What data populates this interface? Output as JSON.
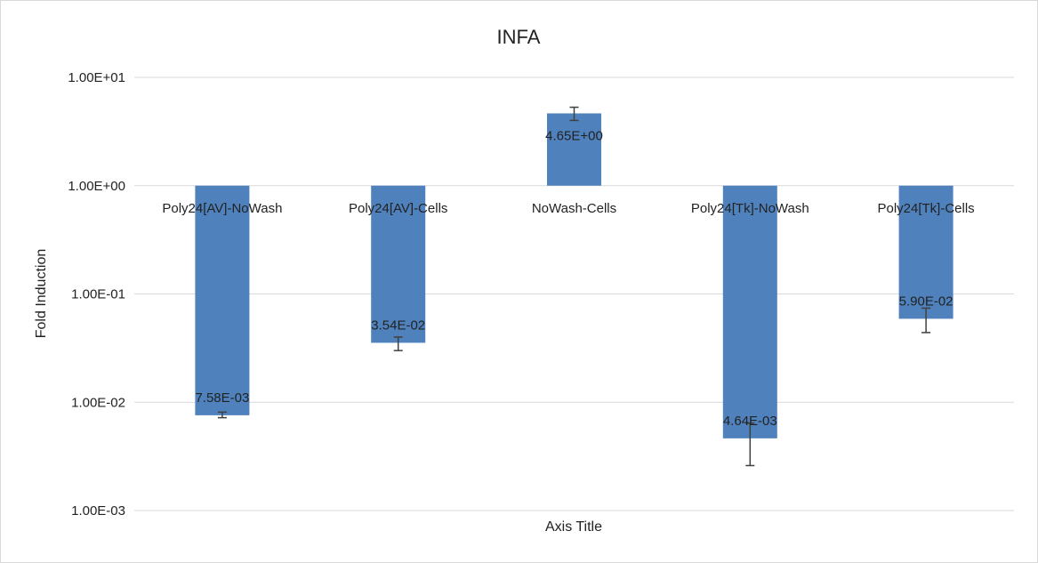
{
  "chart_data": {
    "type": "bar",
    "title": "INFA",
    "xlabel": "Axis Title",
    "ylabel": "Fold Induction",
    "y_scale": "log",
    "ylim": [
      0.001,
      10
    ],
    "bar_baseline": 1,
    "y_ticks": [
      10,
      1,
      0.1,
      0.01,
      0.001
    ],
    "y_tick_labels": [
      "1.00E+01",
      "1.00E+00",
      "1.00E-01",
      "1.00E-02",
      "1.00E-03"
    ],
    "grid": true,
    "legend": "none",
    "categories": [
      "Poly24[AV]-NoWash",
      "Poly24[AV]-Cells",
      "NoWash-Cells",
      "Poly24[Tk]-NoWash",
      "Poly24[Tk]-Cells"
    ],
    "values": [
      0.00758,
      0.0354,
      4.65,
      0.00464,
      0.059
    ],
    "data_labels": [
      "7.58E-03",
      "3.54E-02",
      "4.65E+00",
      "4.64E-03",
      "5.90E-02"
    ],
    "error_low": [
      0.0072,
      0.03,
      4.0,
      0.0026,
      0.044
    ],
    "error_high": [
      0.0081,
      0.04,
      5.3,
      0.0064,
      0.074
    ],
    "colors": {
      "bar": "#4f81bd",
      "grid": "#d9d9d9",
      "error": "#404040"
    }
  }
}
